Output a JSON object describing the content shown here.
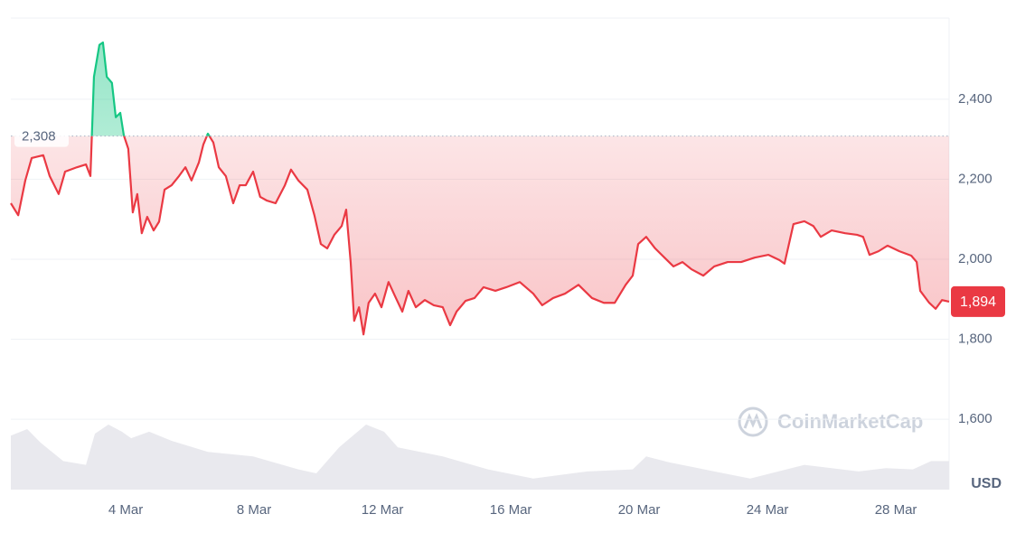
{
  "chart_data": {
    "type": "line",
    "x": [
      0.42,
      0.65,
      0.87,
      1.07,
      1.43,
      1.63,
      1.91,
      2.11,
      2.48,
      2.76,
      2.9,
      3.01,
      3.18,
      3.29,
      3.41,
      3.57,
      3.69,
      3.83,
      3.94,
      4.08,
      4.22,
      4.36,
      4.5,
      4.67,
      4.87,
      5.04,
      5.21,
      5.43,
      5.66,
      5.86,
      6.05,
      6.28,
      6.42,
      6.56,
      6.73,
      6.9,
      7.12,
      7.35,
      7.55,
      7.74,
      7.97,
      8.19,
      8.39,
      8.67,
      8.96,
      9.15,
      9.38,
      9.66,
      9.88,
      10.08,
      10.28,
      10.5,
      10.73,
      10.87,
      11.01,
      11.12,
      11.27,
      11.41,
      11.57,
      11.77,
      11.97,
      12.19,
      12.42,
      12.62,
      12.81,
      13.04,
      13.32,
      13.6,
      13.88,
      14.11,
      14.31,
      14.59,
      14.87,
      15.15,
      15.52,
      15.86,
      16.28,
      16.7,
      16.98,
      17.32,
      17.69,
      18.11,
      18.53,
      18.9,
      19.24,
      19.58,
      19.8,
      19.97,
      20.22,
      20.5,
      20.79,
      21.07,
      21.35,
      21.63,
      22.0,
      22.34,
      22.76,
      23.18,
      23.6,
      24.03,
      24.37,
      24.53,
      24.81,
      25.15,
      25.43,
      25.66,
      26.0,
      26.42,
      26.79,
      26.98,
      27.18,
      27.46,
      27.74,
      28.11,
      28.48,
      28.65,
      28.76,
      29.04,
      29.24,
      29.44,
      29.66
    ],
    "values": [
      2140,
      2110,
      2197,
      2253,
      2260,
      2208,
      2163,
      2219,
      2230,
      2237,
      2208,
      2456,
      2536,
      2542,
      2456,
      2441,
      2355,
      2366,
      2310,
      2276,
      2117,
      2163,
      2065,
      2106,
      2072,
      2094,
      2174,
      2185,
      2208,
      2230,
      2197,
      2242,
      2287,
      2314,
      2292,
      2230,
      2208,
      2140,
      2185,
      2185,
      2219,
      2156,
      2147,
      2140,
      2185,
      2224,
      2197,
      2174,
      2110,
      2038,
      2027,
      2061,
      2083,
      2124,
      1993,
      1846,
      1880,
      1812,
      1891,
      1914,
      1880,
      1943,
      1903,
      1869,
      1921,
      1880,
      1898,
      1885,
      1880,
      1835,
      1869,
      1896,
      1903,
      1930,
      1921,
      1930,
      1943,
      1914,
      1885,
      1903,
      1914,
      1936,
      1903,
      1891,
      1891,
      1936,
      1959,
      2038,
      2056,
      2027,
      2004,
      1982,
      1993,
      1975,
      1959,
      1982,
      1993,
      1993,
      2004,
      2011,
      1998,
      1989,
      2088,
      2095,
      2083,
      2056,
      2072,
      2065,
      2061,
      2056,
      2011,
      2020,
      2034,
      2020,
      2009,
      1993,
      1921,
      1891,
      1876,
      1898,
      1894
    ],
    "up_color": "#16c784",
    "down_color": "#ea3943",
    "reference": {
      "value": 2308,
      "label": "2,308"
    },
    "price_label": {
      "value": 1894,
      "label": "1,894"
    },
    "volume": {
      "color": "#e9e9ee",
      "x": [
        0.42,
        0.93,
        1.35,
        2.05,
        2.76,
        3.04,
        3.46,
        3.88,
        4.17,
        4.73,
        5.43,
        6.56,
        7.97,
        9.38,
        9.94,
        10.65,
        11.49,
        12.05,
        12.48,
        13.88,
        15.29,
        16.7,
        18.39,
        19.8,
        20.22,
        20.93,
        22.34,
        23.46,
        25.15,
        26.84,
        27.69,
        28.53,
        29.1,
        29.66
      ],
      "values": [
        83,
        93,
        72,
        44,
        38,
        86,
        100,
        89,
        79,
        89,
        75,
        58,
        51,
        31,
        25,
        65,
        100,
        89,
        65,
        51,
        31,
        17,
        28,
        31,
        51,
        42,
        28,
        17,
        38,
        28,
        33,
        31,
        44,
        44
      ]
    },
    "y2lim": [
      0,
      100
    ],
    "xlim": [
      0.42,
      29.66
    ],
    "xticks": [
      {
        "value": 4,
        "label": "4 Mar"
      },
      {
        "value": 8,
        "label": "8 Mar"
      },
      {
        "value": 12,
        "label": "12 Mar"
      },
      {
        "value": 16,
        "label": "16 Mar"
      },
      {
        "value": 20,
        "label": "20 Mar"
      },
      {
        "value": 24,
        "label": "24 Mar"
      },
      {
        "value": 28,
        "label": "28 Mar"
      }
    ],
    "ylim": [
      1424,
      2603
    ],
    "yticks": [
      {
        "value": 1600,
        "label": "1,600"
      },
      {
        "value": 1800,
        "label": "1,800"
      },
      {
        "value": 2000,
        "label": "2,000"
      },
      {
        "value": 2200,
        "label": "2,200"
      },
      {
        "value": 2400,
        "label": "2,400"
      }
    ],
    "grid": true,
    "unit": "USD",
    "watermark": "CoinMarketCap"
  }
}
